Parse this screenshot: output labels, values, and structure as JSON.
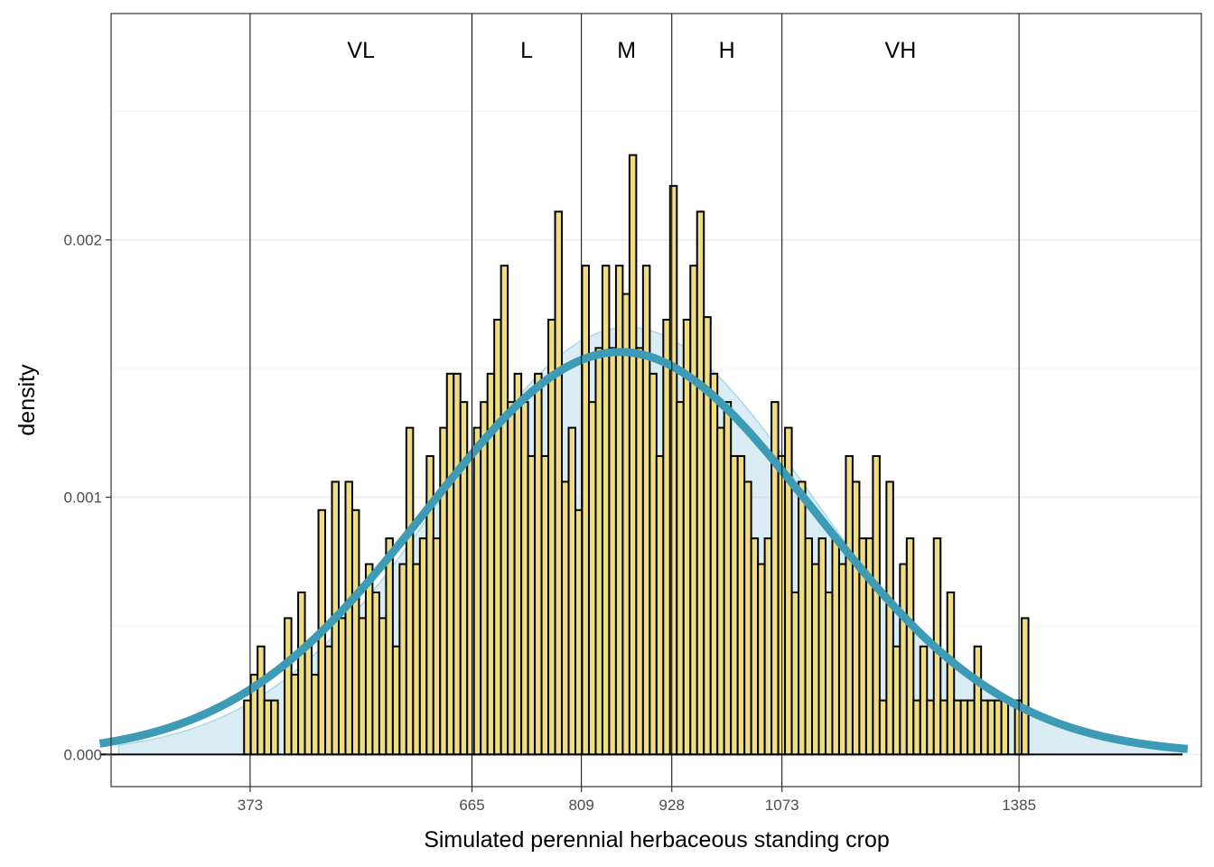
{
  "chart_data": {
    "type": "histogram",
    "title": "",
    "xlabel": "Simulated perennial herbaceous standing crop",
    "ylabel": "density",
    "xlim": [
      190,
      1625
    ],
    "ylim": [
      -0.000125,
      0.00288
    ],
    "x_ticks": [
      373,
      665,
      809,
      928,
      1073,
      1385
    ],
    "y_ticks": [
      0.0,
      0.001,
      0.002
    ],
    "y_tick_labels": [
      "0.000",
      "0.001",
      "0.002"
    ],
    "grid": true,
    "theme": "bw",
    "bin_start": 365,
    "bin_width": 8.9,
    "bin_values": [
      0.00021,
      0.00031,
      0.00042,
      0.00021,
      0.00021,
      0.0,
      0.00053,
      0.00031,
      0.00063,
      0.00042,
      0.00031,
      0.00095,
      0.00042,
      0.00106,
      0.00053,
      0.00106,
      0.00095,
      0.00053,
      0.00074,
      0.00063,
      0.00053,
      0.00084,
      0.00042,
      0.00074,
      0.00127,
      0.00074,
      0.00084,
      0.00116,
      0.00084,
      0.00127,
      0.00148,
      0.00148,
      0.00137,
      0.00116,
      0.00127,
      0.00137,
      0.00148,
      0.00169,
      0.0019,
      0.00137,
      0.00148,
      0.00137,
      0.00116,
      0.00148,
      0.00116,
      0.00169,
      0.00211,
      0.00106,
      0.00127,
      0.00095,
      0.0019,
      0.00137,
      0.00158,
      0.0019,
      0.00158,
      0.0019,
      0.00179,
      0.00233,
      0.00158,
      0.0019,
      0.00148,
      0.00116,
      0.00169,
      0.00221,
      0.00137,
      0.00169,
      0.0019,
      0.00211,
      0.0017,
      0.00148,
      0.00127,
      0.00137,
      0.00116,
      0.00116,
      0.00106,
      0.00084,
      0.00074,
      0.00084,
      0.00137,
      0.00116,
      0.00127,
      0.00063,
      0.00106,
      0.00084,
      0.00074,
      0.00084,
      0.00063,
      0.00084,
      0.00074,
      0.00116,
      0.00106,
      0.00084,
      0.00084,
      0.00116,
      0.00021,
      0.00106,
      0.00042,
      0.00074,
      0.00084,
      0.00021,
      0.00042,
      0.00021,
      0.00084,
      0.00021,
      0.00063,
      0.00021,
      0.00021,
      0.00021,
      0.00042,
      0.00021,
      0.00021,
      0.00021,
      0.00021,
      0.0,
      0.00021,
      0.00053
    ],
    "density_fill": {
      "mean": 870,
      "sd": 242,
      "scale": 0.000993,
      "color": "#add8e6"
    },
    "normal_curve": {
      "mean": 860,
      "sd": 255,
      "color": "#3e9bb5"
    },
    "bar_fill": "#f0dc82",
    "bar_stroke": "#000000",
    "category_breaks": [
      373,
      665,
      809,
      928,
      1073,
      1385
    ],
    "categories": [
      "VL",
      "L",
      "M",
      "H",
      "VH"
    ]
  }
}
